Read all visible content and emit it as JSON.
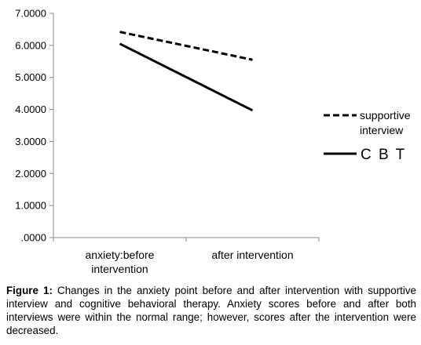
{
  "chart_data": {
    "type": "line",
    "categories": [
      "anxiety:before intervention",
      "after intervention"
    ],
    "category_lines": [
      [
        "anxiety:before",
        "intervention"
      ],
      [
        "after intervention"
      ]
    ],
    "y_ticks": [
      "7.0000",
      "6.0000",
      "5.0000",
      "4.0000",
      "3.0000",
      "2.0000",
      "1.0000",
      ".0000"
    ],
    "ylim": [
      0,
      7
    ],
    "grid": false,
    "legend_position": "right",
    "series": [
      {
        "name": "supportive interview",
        "name_lines": [
          "supportive",
          "interview"
        ],
        "values": [
          6.42,
          5.55
        ],
        "style": "dashed",
        "color": "#000000"
      },
      {
        "name": "C B T",
        "name_lines": [
          "C B T"
        ],
        "values": [
          6.05,
          3.97
        ],
        "style": "solid",
        "color": "#000000"
      }
    ]
  },
  "caption": {
    "label": "Figure 1:",
    "text": "Changes in the anxiety point before and after intervention with supportive interview and cognitive behavioral therapy. Anxiety scores before and after both interviews were within the normal range; however, scores after the intervention were decreased."
  }
}
